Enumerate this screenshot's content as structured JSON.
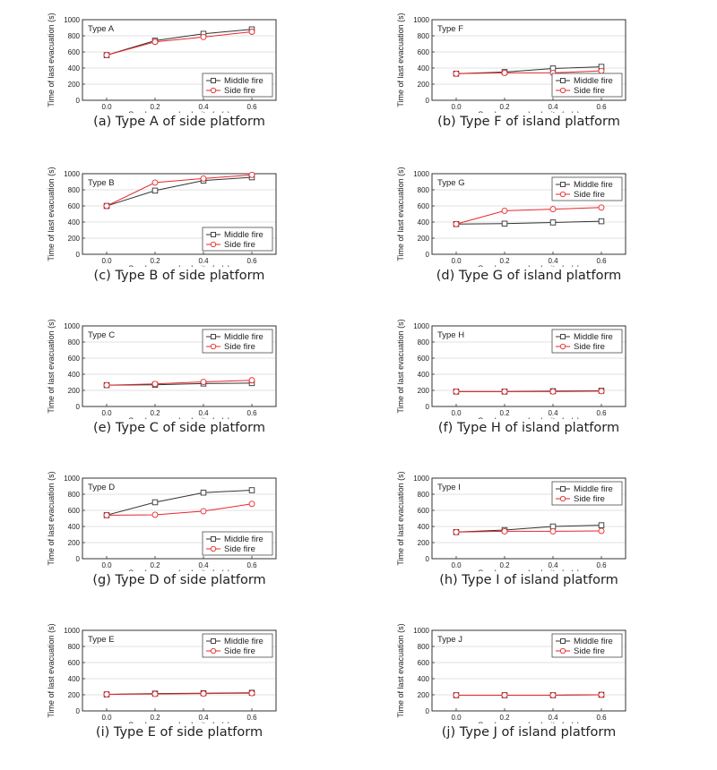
{
  "chart_data": [
    {
      "type": "line",
      "title": "Type A",
      "caption": "(a) Type A of side platform",
      "xlabel": "Smoke spread velocity (m/s)",
      "ylabel": "Time of last evacuation (s)",
      "x": [
        0.0,
        0.2,
        0.4,
        0.6
      ],
      "xticks": [
        "0.0",
        "0.2",
        "0.4",
        "0.6"
      ],
      "xlim": [
        -0.1,
        0.7
      ],
      "ylim": [
        0,
        1000
      ],
      "yticks": [
        "0",
        "200",
        "400",
        "600",
        "800",
        "1000"
      ],
      "legend": "bottom-right",
      "series": [
        {
          "name": "Middle fire",
          "marker": "square",
          "color": "#333333",
          "values": [
            560,
            740,
            825,
            880
          ]
        },
        {
          "name": "Side fire",
          "marker": "circle",
          "color": "#e8262b",
          "values": [
            560,
            725,
            785,
            850
          ]
        }
      ]
    },
    {
      "type": "line",
      "title": "Type F",
      "caption": "(b) Type F of island platform",
      "xlabel": "Smoke spread velocity (m/s)",
      "ylabel": "Time of last evacuation (s)",
      "x": [
        0.0,
        0.2,
        0.4,
        0.6
      ],
      "xticks": [
        "0.0",
        "0.2",
        "0.4",
        "0.6"
      ],
      "xlim": [
        -0.1,
        0.7
      ],
      "ylim": [
        0,
        1000
      ],
      "yticks": [
        "0",
        "200",
        "400",
        "600",
        "800",
        "1000"
      ],
      "legend": "bottom-right",
      "series": [
        {
          "name": "Middle fire",
          "marker": "square",
          "color": "#333333",
          "values": [
            330,
            350,
            395,
            415
          ]
        },
        {
          "name": "Side fire",
          "marker": "circle",
          "color": "#e8262b",
          "values": [
            330,
            340,
            340,
            365
          ]
        }
      ]
    },
    {
      "type": "line",
      "title": "Type B",
      "caption": "(c) Type B of side platform",
      "xlabel": "Smoke spread velocity (m/s)",
      "ylabel": "Time of last evacuation (s)",
      "x": [
        0.0,
        0.2,
        0.4,
        0.6
      ],
      "xticks": [
        "0.0",
        "0.2",
        "0.4",
        "0.6"
      ],
      "xlim": [
        -0.1,
        0.7
      ],
      "ylim": [
        0,
        1000
      ],
      "yticks": [
        "0",
        "200",
        "400",
        "600",
        "800",
        "1000"
      ],
      "legend": "bottom-right",
      "series": [
        {
          "name": "Middle fire",
          "marker": "square",
          "color": "#333333",
          "values": [
            600,
            790,
            915,
            955
          ]
        },
        {
          "name": "Side fire",
          "marker": "circle",
          "color": "#e8262b",
          "values": [
            600,
            890,
            940,
            985
          ]
        }
      ]
    },
    {
      "type": "line",
      "title": "Type G",
      "caption": "(d) Type G of island platform",
      "xlabel": "Smoke spread velocity (m/s)",
      "ylabel": "Time of last evacuation (s)",
      "x": [
        0.0,
        0.2,
        0.4,
        0.6
      ],
      "xticks": [
        "0.0",
        "0.2",
        "0.4",
        "0.6"
      ],
      "xlim": [
        -0.1,
        0.7
      ],
      "ylim": [
        0,
        1000
      ],
      "yticks": [
        "0",
        "200",
        "400",
        "600",
        "800",
        "1000"
      ],
      "legend": "top-right",
      "series": [
        {
          "name": "Middle fire",
          "marker": "square",
          "color": "#333333",
          "values": [
            375,
            380,
            395,
            410
          ]
        },
        {
          "name": "Side fire",
          "marker": "circle",
          "color": "#e8262b",
          "values": [
            375,
            540,
            560,
            580
          ]
        }
      ]
    },
    {
      "type": "line",
      "title": "Type C",
      "caption": "(e) Type C of side platform",
      "xlabel": "Smoke spread velocity (m/s)",
      "ylabel": "Time of last evacuation (s)",
      "x": [
        0.0,
        0.2,
        0.4,
        0.6
      ],
      "xticks": [
        "0.0",
        "0.2",
        "0.4",
        "0.6"
      ],
      "xlim": [
        -0.1,
        0.7
      ],
      "ylim": [
        0,
        1000
      ],
      "yticks": [
        "0",
        "200",
        "400",
        "600",
        "800",
        "1000"
      ],
      "legend": "top-right",
      "series": [
        {
          "name": "Middle fire",
          "marker": "square",
          "color": "#333333",
          "values": [
            265,
            270,
            285,
            290
          ]
        },
        {
          "name": "Side fire",
          "marker": "circle",
          "color": "#e8262b",
          "values": [
            265,
            280,
            305,
            325
          ]
        }
      ]
    },
    {
      "type": "line",
      "title": "Type H",
      "caption": "(f) Type H of island platform",
      "xlabel": "Smoke spread velocity (m/s)",
      "ylabel": "Time of last evacuation (s)",
      "x": [
        0.0,
        0.2,
        0.4,
        0.6
      ],
      "xticks": [
        "0.0",
        "0.2",
        "0.4",
        "0.6"
      ],
      "xlim": [
        -0.1,
        0.7
      ],
      "ylim": [
        0,
        1000
      ],
      "yticks": [
        "0",
        "200",
        "400",
        "600",
        "800",
        "1000"
      ],
      "legend": "top-right",
      "series": [
        {
          "name": "Middle fire",
          "marker": "square",
          "color": "#333333",
          "values": [
            185,
            185,
            190,
            195
          ]
        },
        {
          "name": "Side fire",
          "marker": "circle",
          "color": "#e8262b",
          "values": [
            185,
            185,
            185,
            190
          ]
        }
      ]
    },
    {
      "type": "line",
      "title": "Type D",
      "caption": "(g) Type D of side platform",
      "xlabel": "Smoke spread velocity (m/s)",
      "ylabel": "Time of last evacuation (s)",
      "x": [
        0.0,
        0.2,
        0.4,
        0.6
      ],
      "xticks": [
        "0.0",
        "0.2",
        "0.4",
        "0.6"
      ],
      "xlim": [
        -0.1,
        0.7
      ],
      "ylim": [
        0,
        1000
      ],
      "yticks": [
        "0",
        "200",
        "400",
        "600",
        "800",
        "1000"
      ],
      "legend": "bottom-right",
      "series": [
        {
          "name": "Middle fire",
          "marker": "square",
          "color": "#333333",
          "values": [
            540,
            700,
            820,
            850
          ]
        },
        {
          "name": "Side fire",
          "marker": "circle",
          "color": "#e8262b",
          "values": [
            540,
            545,
            590,
            680
          ]
        }
      ]
    },
    {
      "type": "line",
      "title": "Type I",
      "caption": "(h) Type I of island platform",
      "xlabel": "Smoke spread velocity (m/s)",
      "ylabel": "Time of last evacuation (s)",
      "x": [
        0.0,
        0.2,
        0.4,
        0.6
      ],
      "xticks": [
        "0.0",
        "0.2",
        "0.4",
        "0.6"
      ],
      "xlim": [
        -0.1,
        0.7
      ],
      "ylim": [
        0,
        1000
      ],
      "yticks": [
        "0",
        "200",
        "400",
        "600",
        "800",
        "1000"
      ],
      "legend": "top-right",
      "series": [
        {
          "name": "Middle fire",
          "marker": "square",
          "color": "#333333",
          "values": [
            330,
            355,
            400,
            415
          ]
        },
        {
          "name": "Side fire",
          "marker": "circle",
          "color": "#e8262b",
          "values": [
            330,
            340,
            340,
            345
          ]
        }
      ]
    },
    {
      "type": "line",
      "title": "Type E",
      "caption": "(i) Type E of side platform",
      "xlabel": "Smoke spread velocity (m/s)",
      "ylabel": "Time of last evacuation (s)",
      "x": [
        0.0,
        0.2,
        0.4,
        0.6
      ],
      "xticks": [
        "0.0",
        "0.2",
        "0.4",
        "0.6"
      ],
      "xlim": [
        -0.1,
        0.7
      ],
      "ylim": [
        0,
        1000
      ],
      "yticks": [
        "0",
        "200",
        "400",
        "600",
        "800",
        "1000"
      ],
      "legend": "top-right",
      "series": [
        {
          "name": "Middle fire",
          "marker": "square",
          "color": "#333333",
          "values": [
            205,
            215,
            220,
            225
          ]
        },
        {
          "name": "Side fire",
          "marker": "circle",
          "color": "#e8262b",
          "values": [
            205,
            210,
            215,
            220
          ]
        }
      ]
    },
    {
      "type": "line",
      "title": "Type J",
      "caption": "(j) Type J of island platform",
      "xlabel": "Smoke spread velocity (m/s)",
      "ylabel": "Time of last evacuation (s)",
      "x": [
        0.0,
        0.2,
        0.4,
        0.6
      ],
      "xticks": [
        "0.0",
        "0.2",
        "0.4",
        "0.6"
      ],
      "xlim": [
        -0.1,
        0.7
      ],
      "ylim": [
        0,
        1000
      ],
      "yticks": [
        "0",
        "200",
        "400",
        "600",
        "800",
        "1000"
      ],
      "legend": "top-right",
      "series": [
        {
          "name": "Middle fire",
          "marker": "square",
          "color": "#333333",
          "values": [
            195,
            195,
            195,
            200
          ]
        },
        {
          "name": "Side fire",
          "marker": "circle",
          "color": "#e8262b",
          "values": [
            195,
            195,
            195,
            200
          ]
        }
      ]
    }
  ]
}
